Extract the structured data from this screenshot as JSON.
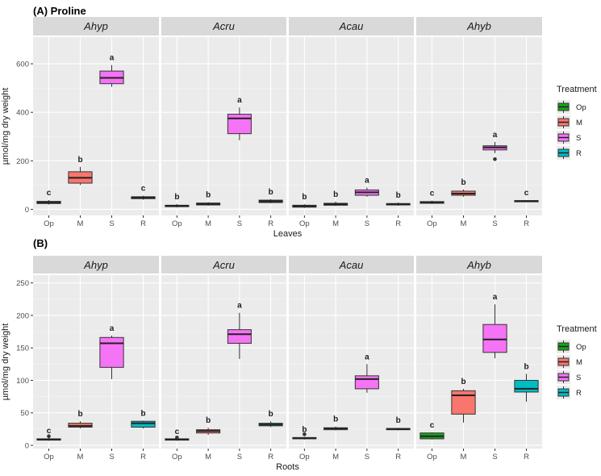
{
  "chart_data": [
    {
      "type": "boxplot",
      "title": "(A) Proline",
      "xlabel": "Leaves",
      "ylabel": "µmol/mg dry weight",
      "ylim": [
        -25,
        710
      ],
      "yticks": [
        0,
        200,
        400,
        600
      ],
      "categories": [
        "Op",
        "M",
        "S",
        "R"
      ],
      "legend": {
        "title": "Treatment",
        "items": [
          "Op",
          "M",
          "S",
          "R"
        ]
      },
      "panels": [
        {
          "species": "Ahyp",
          "groups": [
            {
              "treatment": "Op",
              "min": 20,
              "q1": 24,
              "median": 28,
              "q3": 33,
              "max": 38,
              "letter": "c",
              "outliers": []
            },
            {
              "treatment": "M",
              "min": 100,
              "q1": 108,
              "median": 130,
              "q3": 155,
              "max": 175,
              "letter": "b",
              "outliers": []
            },
            {
              "treatment": "S",
              "min": 505,
              "q1": 518,
              "median": 542,
              "q3": 570,
              "max": 595,
              "letter": "a",
              "outliers": []
            },
            {
              "treatment": "R",
              "min": 40,
              "q1": 44,
              "median": 48,
              "q3": 52,
              "max": 56,
              "letter": "c",
              "outliers": []
            }
          ]
        },
        {
          "species": "Acru",
          "groups": [
            {
              "treatment": "Op",
              "min": 8,
              "q1": 11,
              "median": 14,
              "q3": 17,
              "max": 22,
              "letter": "b",
              "outliers": []
            },
            {
              "treatment": "M",
              "min": 15,
              "q1": 18,
              "median": 22,
              "q3": 26,
              "max": 30,
              "letter": "b",
              "outliers": []
            },
            {
              "treatment": "S",
              "min": 285,
              "q1": 312,
              "median": 375,
              "q3": 392,
              "max": 420,
              "letter": "a",
              "outliers": []
            },
            {
              "treatment": "R",
              "min": 25,
              "q1": 28,
              "median": 33,
              "q3": 38,
              "max": 42,
              "letter": "b",
              "outliers": []
            }
          ]
        },
        {
          "species": "Acau",
          "groups": [
            {
              "treatment": "Op",
              "min": 6,
              "q1": 9,
              "median": 13,
              "q3": 17,
              "max": 21,
              "letter": "b",
              "outliers": []
            },
            {
              "treatment": "M",
              "min": 14,
              "q1": 17,
              "median": 21,
              "q3": 25,
              "max": 32,
              "letter": "b",
              "outliers": []
            },
            {
              "treatment": "S",
              "min": 52,
              "q1": 58,
              "median": 70,
              "q3": 80,
              "max": 90,
              "letter": "a",
              "outliers": []
            },
            {
              "treatment": "R",
              "min": 15,
              "q1": 18,
              "median": 21,
              "q3": 24,
              "max": 29,
              "letter": "b",
              "outliers": []
            }
          ]
        },
        {
          "species": "Ahyb",
          "groups": [
            {
              "treatment": "Op",
              "min": 22,
              "q1": 25,
              "median": 28,
              "q3": 32,
              "max": 36,
              "letter": "c",
              "outliers": []
            },
            {
              "treatment": "M",
              "min": 52,
              "q1": 58,
              "median": 65,
              "q3": 75,
              "max": 82,
              "letter": "b",
              "outliers": []
            },
            {
              "treatment": "S",
              "min": 232,
              "q1": 245,
              "median": 255,
              "q3": 262,
              "max": 278,
              "letter": "a",
              "outliers": [
                207
              ]
            },
            {
              "treatment": "R",
              "min": 30,
              "q1": 32,
              "median": 34,
              "q3": 36,
              "max": 38,
              "letter": "c",
              "outliers": []
            }
          ]
        }
      ]
    },
    {
      "type": "boxplot",
      "title": "(B)",
      "xlabel": "Roots",
      "ylabel": "µmol/mg dry weight",
      "ylim": [
        -5,
        262
      ],
      "yticks": [
        0,
        50,
        100,
        150,
        200,
        250
      ],
      "categories": [
        "Op",
        "M",
        "S",
        "R"
      ],
      "legend": {
        "title": "Treatment",
        "items": [
          "Op",
          "M",
          "S",
          "R"
        ]
      },
      "panels": [
        {
          "species": "Ahyp",
          "groups": [
            {
              "treatment": "Op",
              "min": 7,
              "q1": 8,
              "median": 9,
              "q3": 10,
              "max": 11,
              "letter": "c",
              "outliers": [
                14
              ]
            },
            {
              "treatment": "M",
              "min": 26,
              "q1": 28,
              "median": 30,
              "q3": 34,
              "max": 37,
              "letter": "b",
              "outliers": []
            },
            {
              "treatment": "S",
              "min": 102,
              "q1": 120,
              "median": 157,
              "q3": 166,
              "max": 169,
              "letter": "a",
              "outliers": []
            },
            {
              "treatment": "R",
              "min": 26,
              "q1": 28,
              "median": 34,
              "q3": 37,
              "max": 38,
              "letter": "b",
              "outliers": []
            }
          ]
        },
        {
          "species": "Acru",
          "groups": [
            {
              "treatment": "Op",
              "min": 7,
              "q1": 8,
              "median": 9,
              "q3": 10,
              "max": 10,
              "letter": "c",
              "outliers": [
                12
              ]
            },
            {
              "treatment": "M",
              "min": 16,
              "q1": 19,
              "median": 22,
              "q3": 24,
              "max": 27,
              "letter": "b",
              "outliers": []
            },
            {
              "treatment": "S",
              "min": 133,
              "q1": 157,
              "median": 171,
              "q3": 178,
              "max": 204,
              "letter": "a",
              "outliers": []
            },
            {
              "treatment": "R",
              "min": 28,
              "q1": 30,
              "median": 32,
              "q3": 34,
              "max": 37,
              "letter": "b",
              "outliers": []
            }
          ]
        },
        {
          "species": "Acau",
          "groups": [
            {
              "treatment": "Op",
              "min": 9,
              "q1": 10,
              "median": 11,
              "q3": 12,
              "max": 13,
              "letter": "b",
              "outliers": [
                17
              ]
            },
            {
              "treatment": "M",
              "min": 23,
              "q1": 24,
              "median": 26,
              "q3": 27,
              "max": 29,
              "letter": "b",
              "outliers": []
            },
            {
              "treatment": "S",
              "min": 81,
              "q1": 87,
              "median": 102,
              "q3": 107,
              "max": 125,
              "letter": "a",
              "outliers": []
            },
            {
              "treatment": "R",
              "min": 23,
              "q1": 24,
              "median": 25,
              "q3": 26,
              "max": 27,
              "letter": "b",
              "outliers": []
            }
          ]
        },
        {
          "species": "Ahyb",
          "groups": [
            {
              "treatment": "Op",
              "min": 9,
              "q1": 10,
              "median": 14,
              "q3": 19,
              "max": 20,
              "letter": "c",
              "outliers": []
            },
            {
              "treatment": "M",
              "min": 35,
              "q1": 48,
              "median": 77,
              "q3": 84,
              "max": 87,
              "letter": "b",
              "outliers": []
            },
            {
              "treatment": "S",
              "min": 134,
              "q1": 143,
              "median": 163,
              "q3": 186,
              "max": 217,
              "letter": "a",
              "outliers": []
            },
            {
              "treatment": "R",
              "min": 67,
              "q1": 82,
              "median": 87,
              "q3": 100,
              "max": 110,
              "letter": "b",
              "outliers": []
            }
          ]
        }
      ]
    }
  ],
  "colors": {
    "Op": "#1aa31a",
    "M": "#f8766d",
    "S": "#f573f5",
    "R": "#00bcc4"
  }
}
